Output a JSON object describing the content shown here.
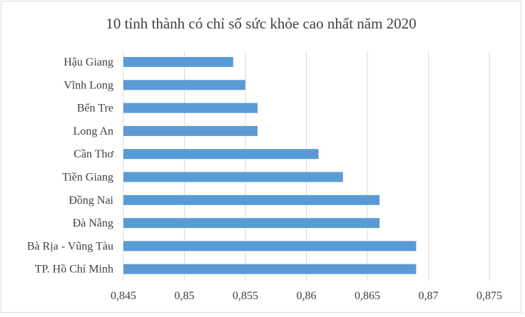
{
  "chart_data": {
    "type": "bar",
    "orientation": "horizontal",
    "title": "10 tỉnh thành có chỉ số sức khỏe cao nhất năm 2020",
    "categories": [
      "Hậu Giang",
      "Vĩnh Long",
      "Bến Tre",
      "Long An",
      "Cần Thơ",
      "Tiền Giang",
      "Đồng Nai",
      "Đà Nẵng",
      "Bà Rịa - Vũng Tàu",
      "TP. Hồ Chí Minh"
    ],
    "values": [
      0.854,
      0.855,
      0.856,
      0.856,
      0.861,
      0.863,
      0.866,
      0.866,
      0.869,
      0.869
    ],
    "xlim": [
      0.845,
      0.875
    ],
    "xticks": [
      "0,845",
      "0,85",
      "0,855",
      "0,86",
      "0,865",
      "0,87",
      "0,875"
    ],
    "xtick_values": [
      0.845,
      0.85,
      0.855,
      0.86,
      0.865,
      0.87,
      0.875
    ],
    "grid": true,
    "color": "#5b9bd5"
  }
}
